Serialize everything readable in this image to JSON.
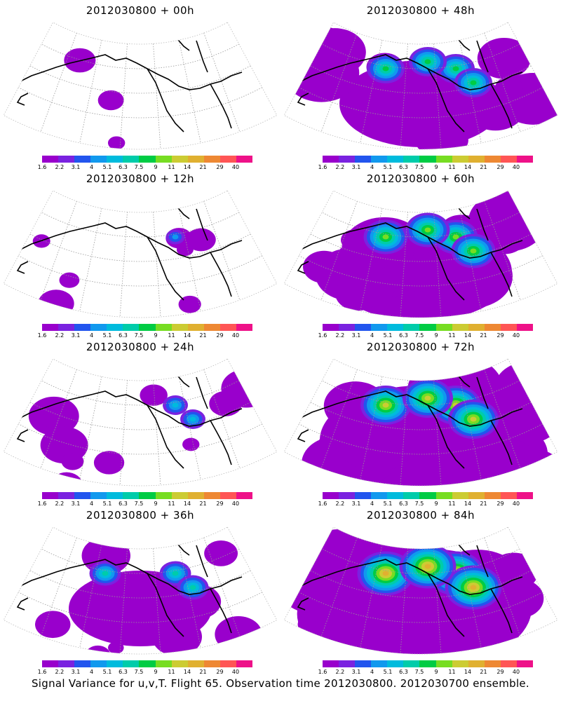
{
  "panels": [
    {
      "title": "2012030800 + 00h",
      "intensity": 0
    },
    {
      "title": "2012030800 + 48h",
      "intensity": 4
    },
    {
      "title": "2012030800 + 12h",
      "intensity": 1
    },
    {
      "title": "2012030800 + 60h",
      "intensity": 5
    },
    {
      "title": "2012030800 + 24h",
      "intensity": 2
    },
    {
      "title": "2012030800 + 72h",
      "intensity": 6
    },
    {
      "title": "2012030800 + 36h",
      "intensity": 3
    },
    {
      "title": "2012030800 + 84h",
      "intensity": 7
    }
  ],
  "colorbar": {
    "colors": [
      "#9900cc",
      "#7a22e0",
      "#2255ee",
      "#1199ee",
      "#00bbdd",
      "#00ccaa",
      "#00cc44",
      "#77dd22",
      "#cccc33",
      "#e0b030",
      "#ee8833",
      "#ff5555",
      "#ee1188"
    ],
    "labels": [
      "1.6",
      "2.2",
      "3.1",
      "4",
      "5.1",
      "6.3",
      "7.5",
      "9",
      "11",
      "14",
      "21",
      "29",
      "40"
    ]
  },
  "caption": "Signal Variance for u,v,T. Flight 65. Observation time 2012030800. 2012030700 ensemble."
}
